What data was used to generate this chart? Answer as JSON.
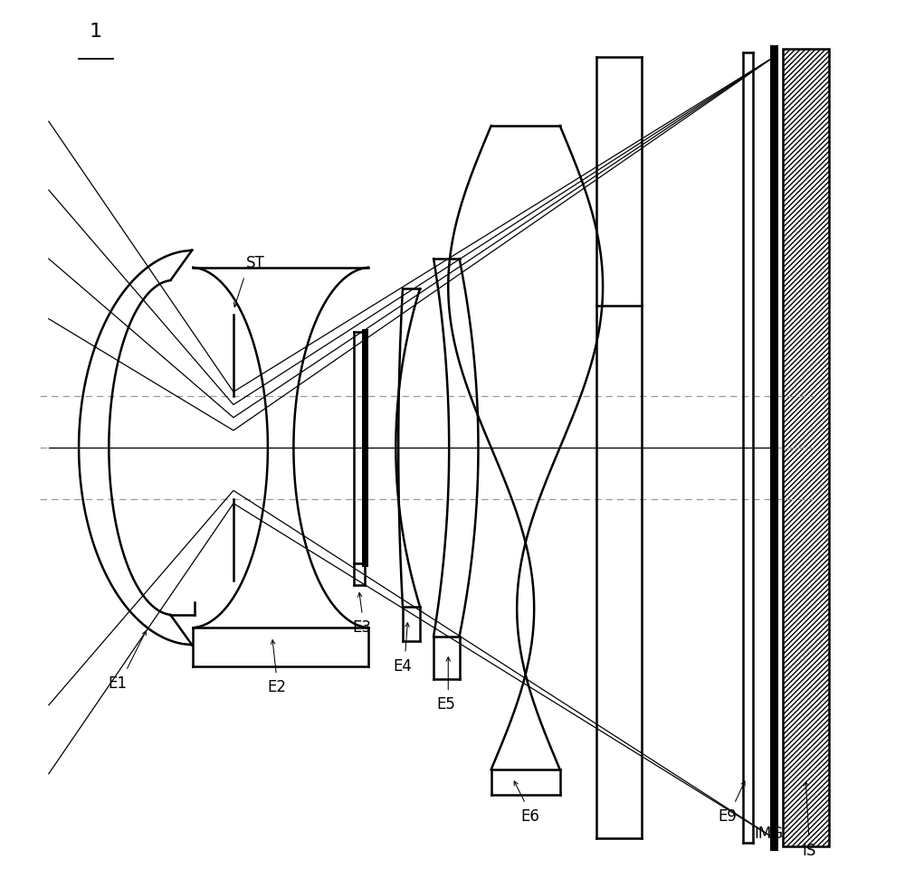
{
  "background": "#ffffff",
  "lw": 1.8,
  "lw_thick": 5.0,
  "ray_lw": 0.9,
  "axis_lw": 0.85,
  "label_fs": 12,
  "figsize": [
    10.0,
    9.71
  ],
  "dpi": 100,
  "xlim": [
    0.5,
    10.3
  ],
  "ylim": [
    -5.0,
    5.2
  ]
}
